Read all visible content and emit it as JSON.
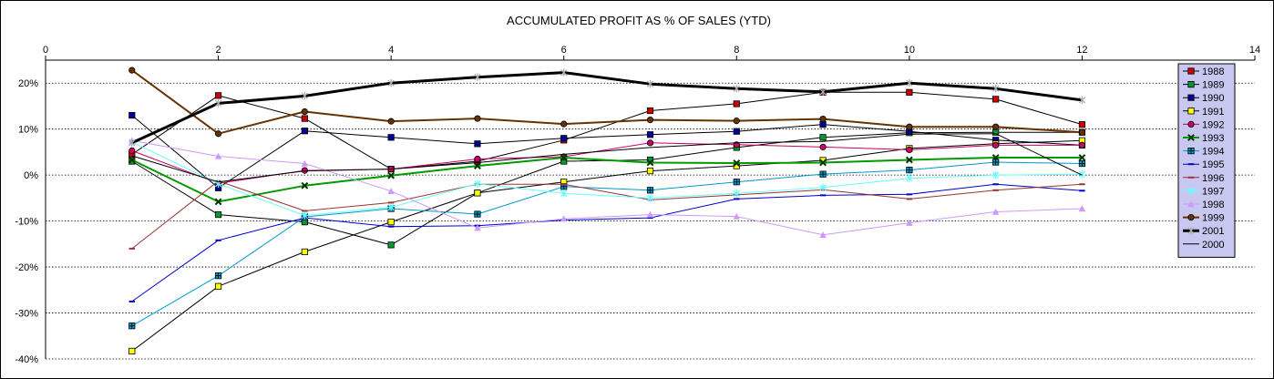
{
  "chart_data": {
    "type": "line",
    "title": "ACCUMULATED PROFIT AS % OF SALES (YTD)",
    "xlabel": "",
    "ylabel": "",
    "xlim": [
      0,
      14
    ],
    "ylim": [
      -40,
      25
    ],
    "x_ticks": [
      0,
      2,
      4,
      6,
      8,
      10,
      12,
      14
    ],
    "x_tick_labels": [
      "0",
      "2",
      "4",
      "6",
      "8",
      "10",
      "12",
      "14"
    ],
    "y_ticks": [
      -40,
      -30,
      -20,
      -10,
      0,
      10,
      20
    ],
    "y_tick_labels": [
      "-40%",
      "-30%",
      "-20%",
      "-10%",
      "0%",
      "10%",
      "20%"
    ],
    "x_axis_position": "top",
    "grid": "horizontal dotted",
    "legend_position": "right",
    "x": [
      1,
      2,
      3,
      4,
      5,
      6,
      7,
      8,
      9,
      10,
      11,
      12
    ],
    "series": [
      {
        "name": "1988",
        "color": "#cc0000",
        "marker": "square",
        "values": [
          4.5,
          17.3,
          12.3,
          1.3,
          3.0,
          7.6,
          14.0,
          15.5,
          18.0,
          18.0,
          16.5,
          11.0
        ]
      },
      {
        "name": "1989",
        "color": "#009933",
        "marker": "square",
        "values": [
          3.0,
          -8.6,
          -10.2,
          -15.2,
          -3.9,
          3.0,
          3.3,
          6.0,
          8.2,
          9.2,
          9.3,
          9.3
        ]
      },
      {
        "name": "1990",
        "color": "#000099",
        "marker": "square",
        "values": [
          13.0,
          -2.8,
          9.6,
          8.2,
          6.8,
          8.0,
          8.8,
          9.5,
          11.0,
          9.5,
          7.6,
          6.5
        ]
      },
      {
        "name": "1991",
        "color": "#ffff00",
        "marker": "square",
        "values": [
          -38.3,
          -24.2,
          -16.7,
          -10.2,
          -3.9,
          -1.5,
          0.9,
          2.0,
          3.2,
          5.8,
          6.8,
          7.5
        ]
      },
      {
        "name": "1992",
        "color": "#cc0066",
        "marker": "circle",
        "values": [
          5.3,
          -1.8,
          1.0,
          1.3,
          3.5,
          4.0,
          7.0,
          6.6,
          6.1,
          5.5,
          6.5,
          6.5
        ]
      },
      {
        "name": "1993",
        "color": "#009900",
        "marker": "x",
        "values": [
          3.3,
          -5.8,
          -2.3,
          -0.1,
          2.0,
          3.8,
          2.7,
          2.6,
          2.7,
          3.3,
          3.8,
          3.8
        ]
      },
      {
        "name": "1994",
        "color": "#0099cc",
        "marker": "square-cross",
        "values": [
          -32.8,
          -21.9,
          -9.1,
          -7.3,
          -8.5,
          -2.5,
          -3.3,
          -1.5,
          0.2,
          1.1,
          2.8,
          2.5
        ]
      },
      {
        "name": "1995",
        "color": "#0000cc",
        "marker": "dash",
        "values": [
          -27.5,
          -14.2,
          -9.3,
          -11.2,
          -11.0,
          -9.8,
          -9.3,
          -5.2,
          -4.4,
          -4.2,
          -2.0,
          -3.4
        ]
      },
      {
        "name": "1996",
        "color": "#993333",
        "marker": "dash",
        "values": [
          -16.0,
          -1.3,
          -7.8,
          -6.0,
          -2.0,
          -2.0,
          -5.4,
          -4.3,
          -3.2,
          -5.2,
          -3.3,
          -2.0
        ]
      },
      {
        "name": "1997",
        "color": "#66ffff",
        "marker": "star",
        "values": [
          7.2,
          -1.9,
          -8.8,
          -7.0,
          -1.9,
          -4.0,
          -5.0,
          -4.0,
          -2.7,
          -0.7,
          0.0,
          0.2
        ]
      },
      {
        "name": "1998",
        "color": "#cc99ff",
        "marker": "triangle",
        "values": [
          7.5,
          4.1,
          2.5,
          -3.5,
          -11.5,
          -9.5,
          -8.6,
          -9.0,
          -13.0,
          -10.4,
          -8.0,
          -7.3
        ]
      },
      {
        "name": "1999",
        "color": "#663300",
        "marker": "circle",
        "values": [
          22.8,
          9.0,
          13.8,
          11.7,
          12.3,
          11.1,
          12.0,
          11.8,
          12.2,
          10.5,
          10.5,
          9.3
        ]
      },
      {
        "name": "2001",
        "color": "#000000",
        "marker": "star",
        "values": [
          7.0,
          15.6,
          17.2,
          20.0,
          21.3,
          22.3,
          19.8,
          18.8,
          18.1,
          20.0,
          18.8,
          16.3
        ]
      },
      {
        "name": "2000",
        "color": "#000000",
        "marker": "none",
        "values": [
          4.2,
          -1.5,
          0.9,
          1.3,
          2.7,
          4.5,
          6.0,
          7.0,
          7.3,
          8.9,
          9.0,
          0.0
        ]
      }
    ]
  }
}
